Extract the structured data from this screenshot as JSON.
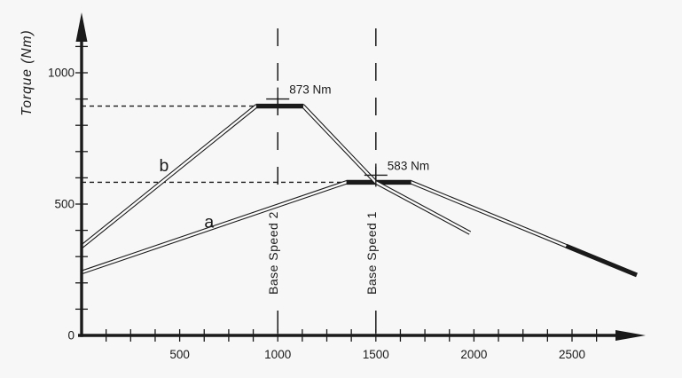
{
  "chart_data": {
    "type": "line",
    "title": "",
    "xlabel": "",
    "ylabel": "Torque (Nm)",
    "grid": false,
    "legend": false,
    "x_axis": {
      "min": 0,
      "max": 2870,
      "tick_interval": 125,
      "labeled_ticks": [
        500,
        1000,
        1500,
        2000,
        2500
      ]
    },
    "y_axis": {
      "min": 0,
      "max": 1150,
      "tick_interval": 100,
      "labeled_ticks": [
        0,
        500,
        1000
      ]
    },
    "series": [
      {
        "name": "a",
        "style": "outlined",
        "points": [
          [
            0,
            240
          ],
          [
            1350,
            583
          ],
          [
            1680,
            583
          ],
          [
            2830,
            230
          ]
        ],
        "plateau": {
          "from": 1350,
          "to": 1680,
          "torque": 583
        },
        "solid_tail_from": 2470
      },
      {
        "name": "b",
        "style": "outlined",
        "points": [
          [
            0,
            338
          ],
          [
            890,
            873
          ],
          [
            1130,
            873
          ],
          [
            1500,
            583
          ],
          [
            1980,
            390
          ]
        ],
        "plateau": {
          "from": 890,
          "to": 1130,
          "torque": 873
        }
      }
    ],
    "series_labels": [
      {
        "text": "b",
        "speed": 420,
        "torque": 645
      },
      {
        "text": "a",
        "speed": 650,
        "torque": 430
      }
    ],
    "peak_annotations": [
      {
        "text": "873 Nm",
        "speed": 1000,
        "torque": 873,
        "marker": "cross"
      },
      {
        "text": "583 Nm",
        "speed": 1500,
        "torque": 583,
        "marker": "cross"
      }
    ],
    "vertical_reference_lines": [
      {
        "speed": 1000,
        "label": "Base Speed 2"
      },
      {
        "speed": 1500,
        "label": "Base Speed 1"
      }
    ],
    "horizontal_reference_lines": [
      {
        "torque": 873,
        "to_speed": 890
      },
      {
        "torque": 583,
        "to_speed": 1350
      }
    ]
  },
  "colors": {
    "background": "#f7f7f7",
    "line": "#1a1a1a",
    "line_inner": "#fafafa"
  }
}
